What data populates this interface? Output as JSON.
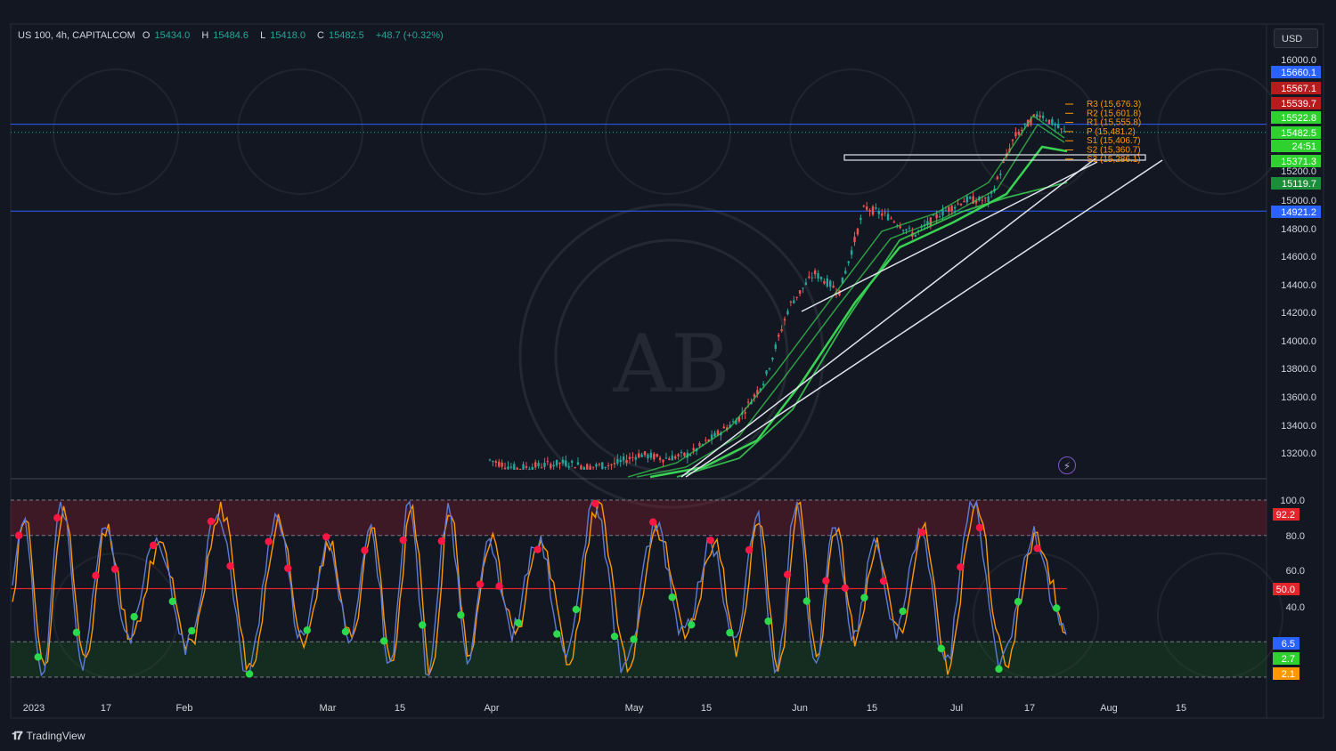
{
  "header": {
    "symbol": "US 100, 4h, CAPITALCOM",
    "open_label": "O",
    "open": "15434.0",
    "high_label": "H",
    "high": "15484.6",
    "low_label": "L",
    "low": "15418.0",
    "close_label": "C",
    "close": "15482.5",
    "change": "+48.7 (+0.32%)"
  },
  "currency": "USD",
  "branding": "TradingView",
  "colors": {
    "background": "#131722",
    "bullish": "#26a69a",
    "bearish": "#ef5350",
    "ema": "#39d353",
    "trendline": "#e0e3eb",
    "hline": "#2962ff",
    "stoch_k": "#5b7bd5",
    "stoch_d": "#ff9800"
  },
  "price_axis": {
    "ticks": [
      "16000.0",
      "15200.0",
      "15000.0",
      "14800.0",
      "14600.0",
      "14400.0",
      "14200.0",
      "14000.0",
      "13800.0",
      "13600.0",
      "13400.0",
      "13200.0"
    ],
    "badges": [
      {
        "text": "15660.1",
        "color": "#2962ff"
      },
      {
        "text": "15567.1",
        "color": "#b71c1c"
      },
      {
        "text": "15539.7",
        "color": "#b71c1c"
      },
      {
        "text": "15522.8",
        "color": "#2fd12f"
      },
      {
        "text": "15482.5",
        "color": "#2fd12f"
      },
      {
        "text": "24:51",
        "color": "#2fd12f"
      },
      {
        "text": "15371.3",
        "color": "#2fd12f"
      },
      {
        "text": "15119.7",
        "color": "#1b8e3a"
      },
      {
        "text": "14921.2",
        "color": "#2962ff"
      }
    ]
  },
  "pivots": [
    "R3 (15,676.3)",
    "R2 (15,601.8)",
    "R1 (15,555.8)",
    "P (15,481.2)",
    "S1 (15,406.7)",
    "S2 (15,360.7)",
    "S3 (15,286.1)"
  ],
  "osc_axis": {
    "ticks": [
      "100.0",
      "80.0",
      "60.0",
      "40.0"
    ],
    "badges": [
      {
        "text": "92.2",
        "color": "#e0252b"
      },
      {
        "text": "50.0",
        "color": "#e0252b"
      },
      {
        "text": "6.5",
        "color": "#2962ff"
      },
      {
        "text": "2.7",
        "color": "#2fd12f"
      },
      {
        "text": "2.1",
        "color": "#ff9800"
      }
    ]
  },
  "time_axis": [
    "2023",
    "17",
    "Feb",
    "Mar",
    "15",
    "Apr",
    "May",
    "15",
    "Jun",
    "15",
    "Jul",
    "17",
    "Aug",
    "15"
  ],
  "chart_data": [
    {
      "type": "line",
      "title": "US 100, 4h, CAPITALCOM",
      "xlabel": "",
      "ylabel": "",
      "ylim": [
        13050,
        16050
      ],
      "series": [
        {
          "x": [
            "Mar 31",
            "Apr 05",
            "Apr 10",
            "Apr 15",
            "Apr 20",
            "Apr 25",
            "May 01",
            "May 05",
            "May 10",
            "May 15",
            "May 20",
            "May 25",
            "May 31",
            "Jun 05",
            "Jun 10",
            "Jun 15",
            "Jun 20",
            "Jun 25",
            "Jun 30",
            "Jul 05",
            "Jul 10",
            "Jul 15",
            "Jul 20",
            "Jul 25"
          ],
          "values": [
            13150,
            13090,
            13110,
            13130,
            13100,
            13120,
            13190,
            13160,
            13190,
            13320,
            13450,
            13720,
            14250,
            14480,
            14350,
            14950,
            14880,
            14750,
            14900,
            15000,
            15000,
            15450,
            15620,
            15480
          ]
        }
      ],
      "horizontal_lines": [
        15539.7,
        14921.2
      ],
      "moving_averages": [
        15371.3,
        15119.7
      ]
    },
    {
      "type": "line",
      "title": "",
      "ylim": [
        0,
        100
      ],
      "levels": [
        80,
        50,
        20
      ],
      "last_values": {
        "k": 6.5,
        "d": 2.7,
        "low": 2.1,
        "upper": 92.2
      }
    }
  ]
}
